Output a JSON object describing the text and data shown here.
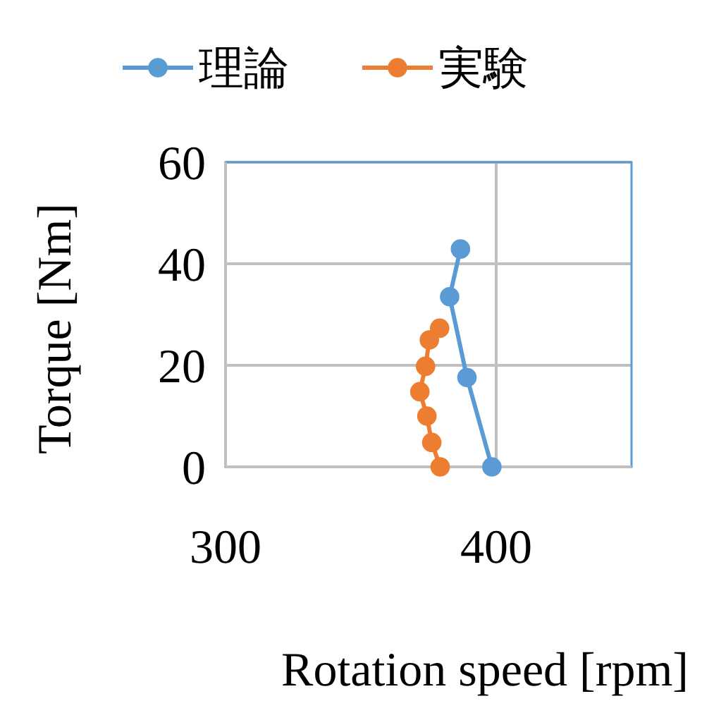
{
  "chart_data": {
    "type": "line",
    "xlabel": "Rotation speed [rpm]",
    "ylabel": "Torque [Nm]",
    "xlim": [
      300,
      450
    ],
    "xticks": [
      300,
      400
    ],
    "ylim": [
      0,
      60
    ],
    "yticks": [
      0,
      20,
      40,
      60
    ],
    "grid": true,
    "legend": "top",
    "marker": "circle",
    "series": [
      {
        "name": "理論",
        "color": "#5b9bd5",
        "x": [
          398.4,
          389.2,
          382.8,
          386.8
        ],
        "values": [
          0,
          17.6,
          33.5,
          42.9
        ]
      },
      {
        "name": "実験",
        "color": "#ed7d31",
        "x": [
          379.3,
          376.2,
          374.4,
          371.8,
          373.9,
          375.3,
          379.1
        ],
        "values": [
          0,
          4.8,
          10,
          14.8,
          19.8,
          25,
          27.3
        ]
      }
    ]
  }
}
